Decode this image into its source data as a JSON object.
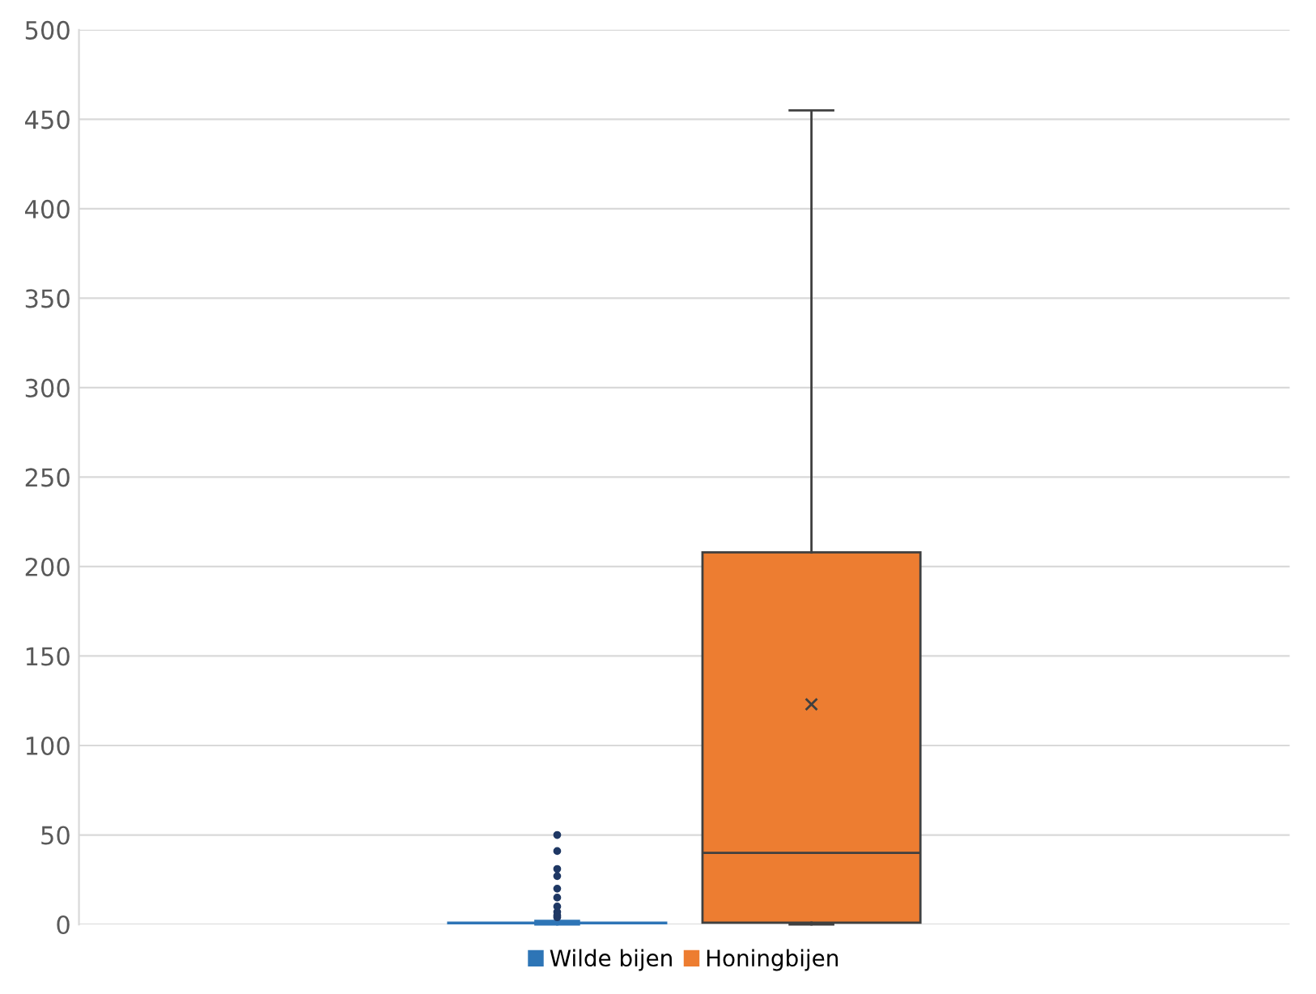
{
  "chart_data": {
    "type": "box",
    "categories": [
      null
    ],
    "series": [
      {
        "name": "Wilde bijen",
        "color": "#2e75b6",
        "boxes": [
          {
            "low": 0,
            "q1": 0,
            "median": 0,
            "q3": 1,
            "high": 2,
            "outliers": [
              50,
              41,
              31,
              27,
              20,
              15,
              10,
              7,
              5,
              4
            ]
          }
        ]
      },
      {
        "name": "Honingbijen",
        "color": "#ed7d31",
        "boxes": [
          {
            "low": 0,
            "q1": 1,
            "median": 40,
            "q3": 208,
            "high": 455,
            "mean": 123
          }
        ]
      }
    ],
    "ylim": [
      0,
      500
    ],
    "yticks": [
      0,
      50,
      100,
      150,
      200,
      250,
      300,
      350,
      400,
      450,
      500
    ],
    "grid": "y",
    "legend": "bottom"
  }
}
